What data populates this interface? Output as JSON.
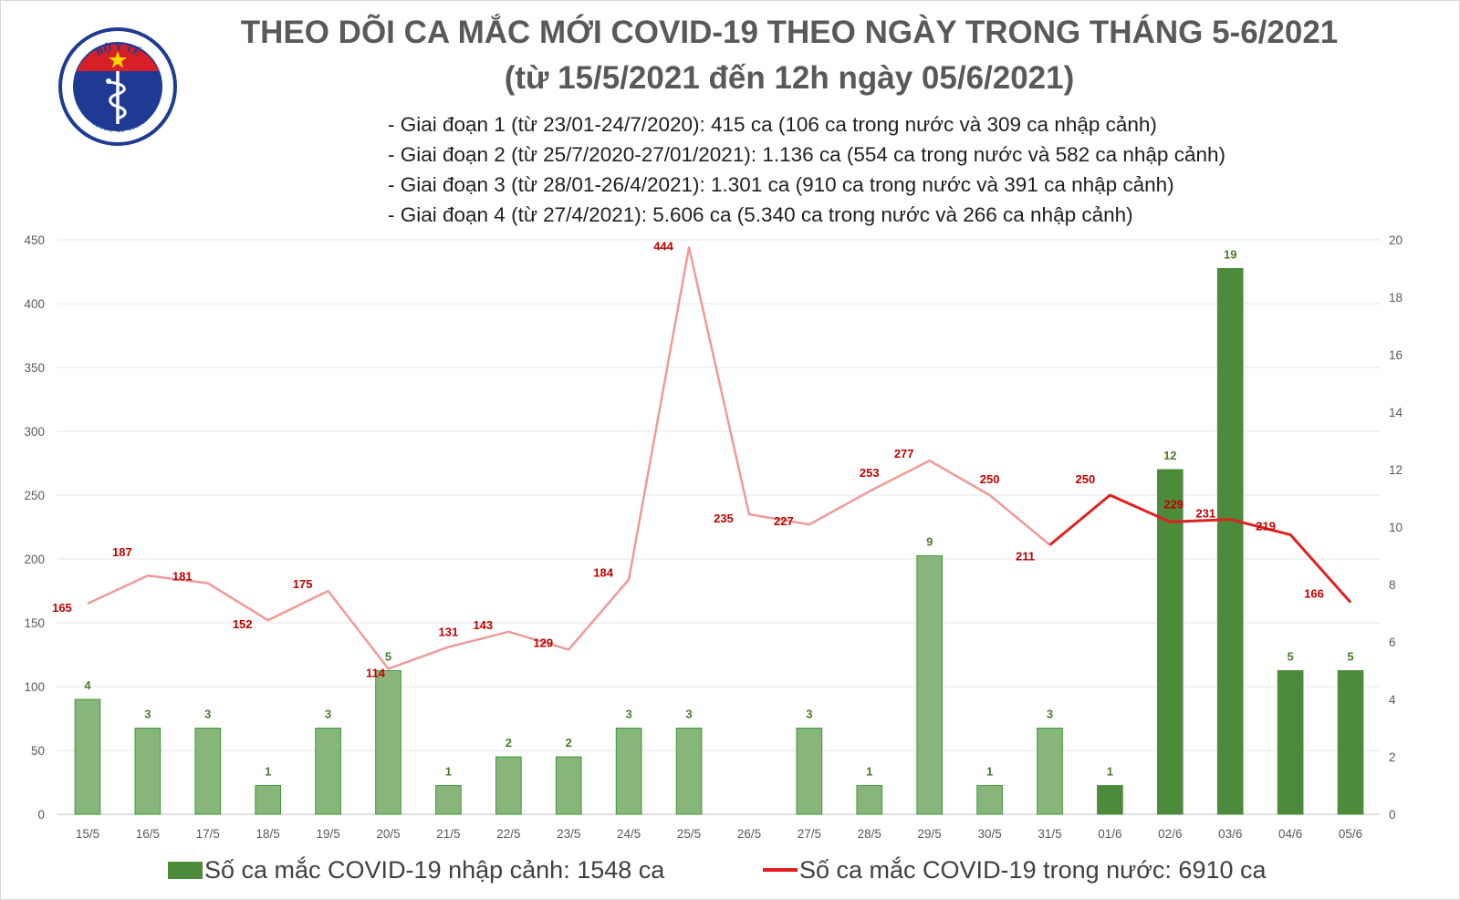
{
  "logo": {
    "arc_text": "BỘ Y TẾ",
    "bottom_text": "MINISTRY OF HEALTH"
  },
  "header": {
    "title_line1": "THEO DÕI CA MẮC MỚI COVID-19 THEO NGÀY TRONG THÁNG 5-6/2021",
    "title_line2": "(từ 15/5/2021 đến 12h ngày 05/6/2021)",
    "phases": [
      "- Giai đoạn 1 (từ 23/01-24/7/2020): 415 ca (106 ca trong nước và 309 ca nhập cảnh)",
      "- Giai đoạn 2 (từ 25/7/2020-27/01/2021): 1.136 ca (554 ca trong nước và 582 ca nhập cảnh)",
      "- Giai đoạn 3 (từ 28/01-26/4/2021): 1.301 ca (910 ca trong nước và 391 ca nhập cảnh)",
      "- Giai đoạn 4 (từ 27/4/2021): 5.606 ca (5.340 ca trong nước và 266 ca nhập cảnh)"
    ]
  },
  "legend": {
    "bar_label": "Số ca mắc COVID-19 nhập cảnh: 1548 ca",
    "line_label": "Số ca mắc COVID-19 trong nước: 6910 ca"
  },
  "colors": {
    "bar_light": "#88b57a",
    "bar_dark": "#4d8b3c",
    "bar_label": "#4a7a30",
    "line_light": "#ee9a9a",
    "line_dark": "#e02020",
    "line_label": "#c00000",
    "axis_text": "#595959",
    "grid": "#e6e6e6"
  },
  "chart_data": {
    "type": "bar",
    "categories": [
      "15/5",
      "16/5",
      "17/5",
      "18/5",
      "19/5",
      "20/5",
      "21/5",
      "22/5",
      "23/5",
      "24/5",
      "25/5",
      "26/5",
      "27/5",
      "28/5",
      "29/5",
      "30/5",
      "31/5",
      "01/6",
      "02/6",
      "03/6",
      "04/6",
      "05/6"
    ],
    "y_left": {
      "min": 0,
      "max": 450,
      "ticks": [
        0,
        50,
        100,
        150,
        200,
        250,
        300,
        350,
        400,
        450
      ]
    },
    "y_right": {
      "min": 0,
      "max": 20,
      "ticks": [
        0,
        2,
        4,
        6,
        8,
        10,
        12,
        14,
        16,
        18,
        20
      ]
    },
    "grid": true,
    "legend_position": "bottom",
    "series": [
      {
        "name": "Số ca mắc COVID-19 nhập cảnh: 1548 ca",
        "type": "bar",
        "axis": "right",
        "values": [
          4,
          3,
          3,
          1,
          3,
          5,
          1,
          2,
          2,
          3,
          3,
          null,
          3,
          1,
          9,
          1,
          3,
          1,
          12,
          19,
          5,
          5
        ],
        "emphasized_from_index": 17
      },
      {
        "name": "Số ca mắc COVID-19 trong nước: 6910 ca",
        "type": "line",
        "axis": "left",
        "values": [
          165,
          187,
          181,
          152,
          175,
          114,
          131,
          143,
          129,
          184,
          444,
          235,
          227,
          253,
          277,
          250,
          211,
          250,
          229,
          231,
          219,
          166
        ],
        "emphasized_from_index": 16
      }
    ]
  }
}
